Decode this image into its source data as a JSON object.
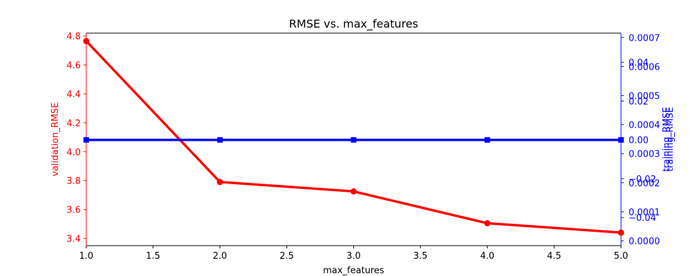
{
  "chart_data": {
    "type": "line",
    "title": "RMSE vs. max_features",
    "xlabel": "max_features",
    "xlim": [
      1.0,
      5.0
    ],
    "x_ticks": [
      "1.0",
      "1.5",
      "2.0",
      "2.5",
      "3.0",
      "3.5",
      "4.0",
      "4.5",
      "5.0"
    ],
    "left_axis": {
      "label": "validation_RMSE",
      "color": "#ff0000",
      "ylim": [
        3.35,
        4.82
      ],
      "ticks": [
        "3.4",
        "3.6",
        "3.8",
        "4.0",
        "4.2",
        "4.4",
        "4.6",
        "4.8"
      ]
    },
    "right_axis_1": {
      "label": "training_RMSE",
      "color": "#0000ff",
      "ylim": [
        -1.67e-05,
        0.000715
      ],
      "ticks": [
        "0.0000",
        "0.0001",
        "0.0002",
        "0.0003",
        "0.0004",
        "0.0005",
        "0.0006",
        "0.0007"
      ]
    },
    "right_axis_2": {
      "label": "training_RMSE",
      "color": "#0000ff",
      "ylim": [
        -0.0545,
        0.055
      ],
      "ticks": [
        "−0.04",
        "−0.02",
        "0.00",
        "0.02",
        "0.04"
      ]
    },
    "series": [
      {
        "name": "validation_RMSE",
        "axis": "left",
        "color": "#ff0000",
        "marker": "circle",
        "x": [
          1,
          2,
          3,
          4,
          5
        ],
        "values": [
          4.765,
          3.79,
          3.725,
          3.505,
          3.44
        ]
      },
      {
        "name": "training_RMSE",
        "axis": "right_2",
        "color": "#0000ff",
        "marker": "square",
        "x": [
          1,
          2,
          3,
          4,
          5
        ],
        "values": [
          0.0,
          0.0,
          0.0,
          0.0,
          0.0
        ]
      }
    ]
  }
}
